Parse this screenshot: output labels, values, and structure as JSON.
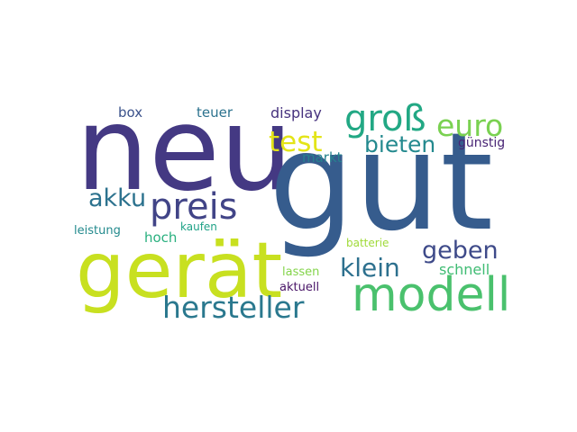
{
  "words": [
    {
      "key": "neu",
      "text": "neu",
      "color": "#443983"
    },
    {
      "key": "gut",
      "text": "gut",
      "color": "#365c8d"
    },
    {
      "key": "geraet",
      "text": "gerät",
      "color": "#c8e020"
    },
    {
      "key": "modell",
      "text": "modell",
      "color": "#4ac16d"
    },
    {
      "key": "hersteller",
      "text": "hersteller",
      "color": "#2a788e"
    },
    {
      "key": "preis",
      "text": "preis",
      "color": "#414487"
    },
    {
      "key": "gross",
      "text": "groß",
      "color": "#22a884"
    },
    {
      "key": "euro",
      "text": "euro",
      "color": "#7ad151"
    },
    {
      "key": "test",
      "text": "test",
      "color": "#e3e418"
    },
    {
      "key": "bieten",
      "text": "bieten",
      "color": "#23898e"
    },
    {
      "key": "guenstig",
      "text": "günstig",
      "color": "#482475"
    },
    {
      "key": "markt",
      "text": "markt",
      "color": "#26828e"
    },
    {
      "key": "akku",
      "text": "akku",
      "color": "#2c728e"
    },
    {
      "key": "box",
      "text": "box",
      "color": "#3b528b"
    },
    {
      "key": "teuer",
      "text": "teuer",
      "color": "#2c728e"
    },
    {
      "key": "display",
      "text": "display",
      "color": "#46327e"
    },
    {
      "key": "geben",
      "text": "geben",
      "color": "#3e4a89"
    },
    {
      "key": "klein",
      "text": "klein",
      "color": "#2d708e"
    },
    {
      "key": "schnell",
      "text": "schnell",
      "color": "#3fbc73"
    },
    {
      "key": "leistung",
      "text": "leistung",
      "color": "#238a8d"
    },
    {
      "key": "hoch",
      "text": "hoch",
      "color": "#2ab07f"
    },
    {
      "key": "kaufen",
      "text": "kaufen",
      "color": "#1fa287"
    },
    {
      "key": "batterie",
      "text": "batterie",
      "color": "#a0da39"
    },
    {
      "key": "lassen",
      "text": "lassen",
      "color": "#84d44b"
    },
    {
      "key": "aktuell",
      "text": "aktuell",
      "color": "#481467"
    }
  ]
}
